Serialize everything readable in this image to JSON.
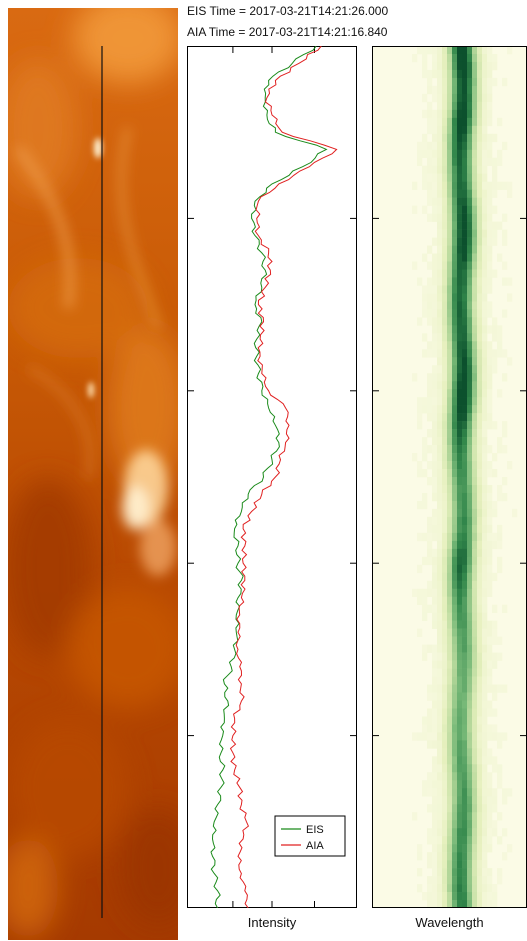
{
  "header": {
    "eis_time": "EIS Time = 2017-03-21T14:21:26.000",
    "aia_time": "AIA Time = 2017-03-21T14:21:16.840"
  },
  "colors": {
    "eis": "#1a8a1a",
    "aia": "#e02020",
    "aia_image_base": "#c85a00",
    "spectrum_dark": "#0b4f2b",
    "spectrum_bg": "#fbfbe6"
  },
  "chart_data": [
    {
      "type": "line",
      "orientation": "vertical",
      "title": "",
      "xlabel": "Intensity",
      "ylabel": "",
      "legend": "bottom-right",
      "position_range": [
        0,
        100
      ],
      "intensity_range": [
        0,
        100
      ],
      "position": [
        0,
        2,
        4,
        6,
        8,
        10,
        12,
        14,
        16,
        18,
        20,
        22,
        24,
        26,
        28,
        30,
        32,
        34,
        36,
        38,
        40,
        42,
        44,
        46,
        48,
        50,
        52,
        54,
        56,
        58,
        60,
        62,
        64,
        66,
        68,
        70,
        72,
        74,
        76,
        78,
        80,
        82,
        84,
        86,
        88,
        90,
        92,
        94,
        96,
        98,
        100
      ],
      "series": [
        {
          "name": "EIS",
          "values": [
            76,
            62,
            48,
            46,
            47,
            52,
            82,
            68,
            50,
            40,
            38,
            40,
            44,
            46,
            44,
            40,
            44,
            41,
            41,
            42,
            44,
            48,
            52,
            54,
            50,
            45,
            36,
            32,
            28,
            30,
            30,
            32,
            30,
            29,
            29,
            28,
            26,
            22,
            24,
            22,
            21,
            20,
            21,
            20,
            18,
            16,
            15,
            15,
            16,
            18,
            18
          ]
        },
        {
          "name": "AIA",
          "values": [
            79,
            66,
            52,
            47,
            50,
            56,
            88,
            72,
            54,
            42,
            41,
            42,
            48,
            49,
            46,
            42,
            45,
            43,
            43,
            44,
            48,
            58,
            60,
            58,
            55,
            52,
            44,
            38,
            33,
            34,
            33,
            34,
            32,
            31,
            30,
            30,
            31,
            32,
            32,
            28,
            27,
            27,
            28,
            31,
            32,
            35,
            33,
            30,
            32,
            34,
            36
          ]
        }
      ]
    },
    {
      "type": "heatmap",
      "title": "",
      "xlabel": "Wavelength",
      "ylabel": "",
      "colormap": "white-yellow-green",
      "line_center_fraction": 0.5,
      "line_center_intensity": [
        0.95,
        0.98,
        0.9,
        0.92,
        1.0,
        0.93,
        0.86,
        0.82,
        0.85,
        0.9,
        0.92,
        0.95,
        0.93,
        0.85,
        0.84,
        0.83,
        0.86,
        0.87,
        0.9,
        0.95,
        1.0,
        0.97,
        0.88,
        0.8,
        0.72,
        0.7,
        0.68,
        0.7,
        0.72,
        0.78,
        0.86,
        0.8,
        0.72,
        0.68,
        0.66,
        0.62,
        0.6,
        0.58,
        0.57,
        0.58,
        0.6,
        0.62,
        0.65,
        0.66,
        0.68,
        0.7,
        0.72,
        0.72,
        0.74,
        0.75,
        0.76
      ],
      "line_width_fraction": 0.08
    }
  ],
  "legend": {
    "eis": "EIS",
    "aia": "AIA"
  },
  "labels": {
    "intensity": "Intensity",
    "wavelength": "Wavelength"
  }
}
